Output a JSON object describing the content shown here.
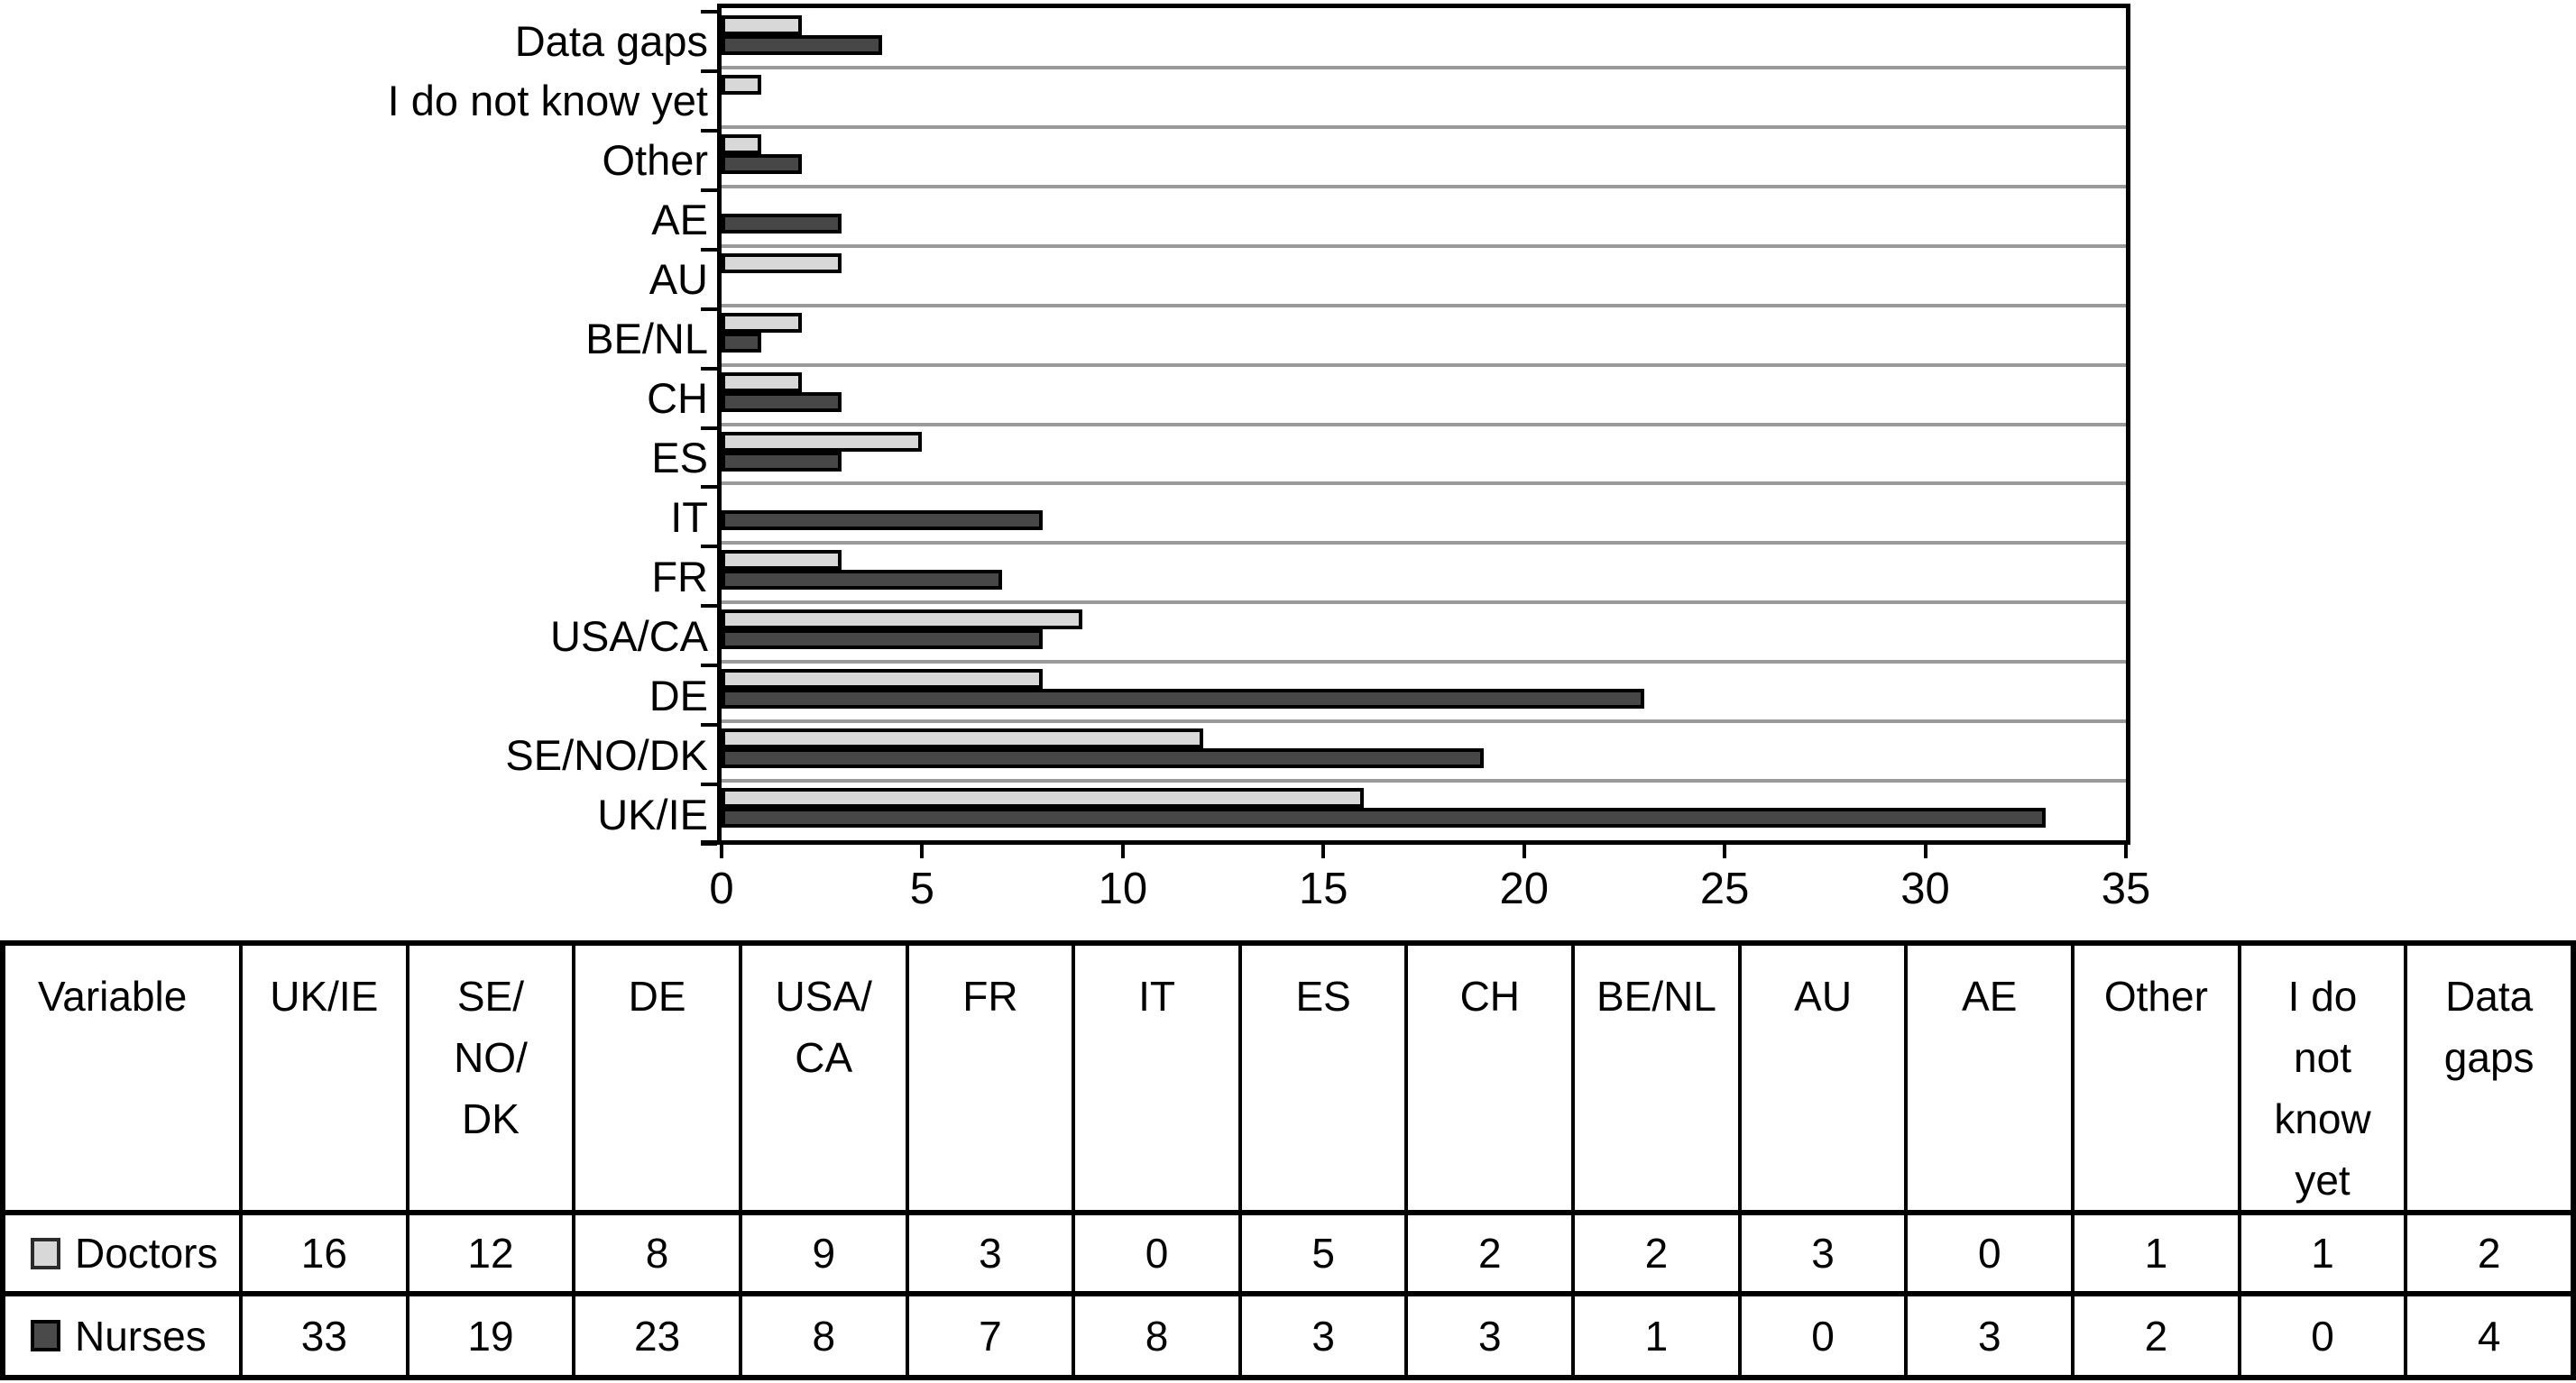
{
  "figure": {
    "description": "Grouped horizontal bar chart of counts per country/region with a data table legend below",
    "background": "#ffffff"
  },
  "colors": {
    "doctors_fill": "#d8d8d8",
    "nurses_fill": "#474747",
    "bar_border": "#000000",
    "gridline": "#9a9a9a",
    "axis": "#000000",
    "text": "#000000"
  },
  "chart_data": {
    "type": "bar",
    "orientation": "horizontal",
    "title": "",
    "xlabel": "",
    "ylabel": "",
    "xlim": [
      0,
      35
    ],
    "xticks": [
      0,
      5,
      10,
      15,
      20,
      25,
      30,
      35
    ],
    "grid": "horizontal gray separator lines between category bands",
    "legend_position": "table below chart (swatches in first column)",
    "categories_top_to_bottom": [
      "Data gaps",
      "I do not know yet",
      "Other",
      "AE",
      "AU",
      "BE/NL",
      "CH",
      "ES",
      "IT",
      "FR",
      "USA/CA",
      "DE",
      "SE/NO/DK",
      "UK/IE"
    ],
    "series": [
      {
        "name": "Doctors",
        "fill": "#d8d8d8",
        "values_top_to_bottom": [
          2,
          1,
          1,
          0,
          3,
          2,
          2,
          5,
          0,
          3,
          9,
          8,
          12,
          16
        ]
      },
      {
        "name": "Nurses",
        "fill": "#474747",
        "values_top_to_bottom": [
          4,
          0,
          2,
          3,
          0,
          1,
          3,
          3,
          8,
          7,
          8,
          23,
          19,
          33
        ]
      }
    ]
  },
  "table": {
    "header": [
      "Variable",
      "UK/IE",
      "SE/\nNO/\nDK",
      "DE",
      "USA/\nCA",
      "FR",
      "IT",
      "ES",
      "CH",
      "BE/NL",
      "AU",
      "AE",
      "Other",
      "I do\nnot\nknow\nyet",
      "Data\ngaps"
    ],
    "rows": [
      {
        "label": "Doctors",
        "swatch": "doctors",
        "values": [
          16,
          12,
          8,
          9,
          3,
          0,
          5,
          2,
          2,
          3,
          0,
          1,
          1,
          2
        ]
      },
      {
        "label": "Nurses",
        "swatch": "nurses",
        "values": [
          33,
          19,
          23,
          8,
          7,
          8,
          3,
          3,
          1,
          0,
          3,
          2,
          0,
          4
        ]
      }
    ]
  }
}
